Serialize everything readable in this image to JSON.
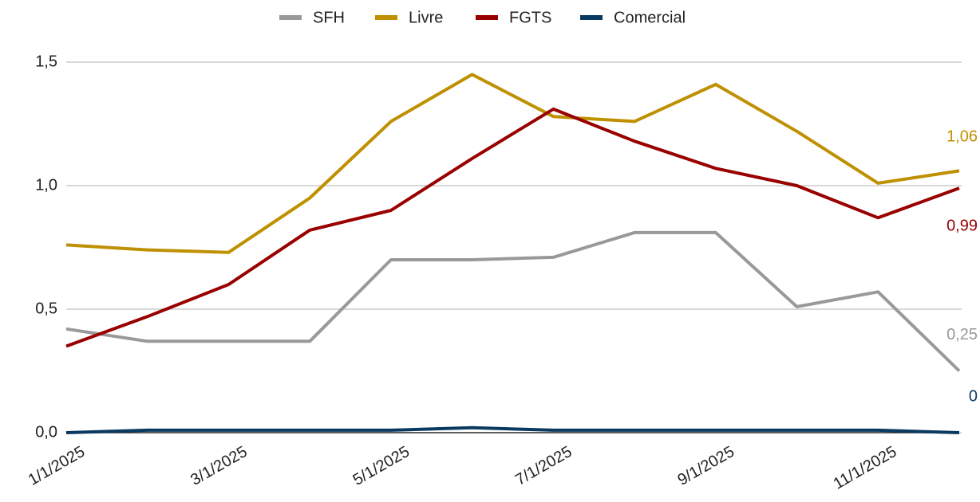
{
  "chart_data": {
    "type": "line",
    "categories": [
      "1/1/2025",
      null,
      "3/1/2025",
      null,
      "5/1/2025",
      null,
      "7/1/2025",
      null,
      "9/1/2025",
      null,
      "11/1/2025",
      null
    ],
    "series": [
      {
        "name": "SFH",
        "color": "#999999",
        "values": [
          0.42,
          0.37,
          0.37,
          0.37,
          0.7,
          0.7,
          0.71,
          0.81,
          0.81,
          0.51,
          0.57,
          0.25
        ],
        "value_labels": [
          null,
          null,
          null,
          null,
          null,
          null,
          null,
          null,
          null,
          null,
          null,
          "0,25"
        ]
      },
      {
        "name": "Livre",
        "color": "#bf9000",
        "values": [
          0.76,
          0.74,
          0.73,
          0.95,
          1.26,
          1.45,
          1.28,
          1.26,
          1.41,
          1.22,
          1.01,
          1.06
        ],
        "value_labels": [
          null,
          null,
          null,
          null,
          null,
          null,
          null,
          null,
          null,
          null,
          null,
          "1,06"
        ]
      },
      {
        "name": "FGTS",
        "color": "#990000",
        "values": [
          0.35,
          0.47,
          0.6,
          0.82,
          0.9,
          1.11,
          1.31,
          1.18,
          1.07,
          1.0,
          0.87,
          0.99
        ],
        "value_labels": [
          null,
          null,
          null,
          null,
          null,
          null,
          null,
          null,
          null,
          null,
          null,
          "0,99"
        ]
      },
      {
        "name": "Comercial",
        "color": "#0b3a60",
        "values": [
          0,
          0.01,
          0.01,
          0.01,
          0.01,
          0.02,
          0.01,
          0.01,
          0.01,
          0.01,
          0.01,
          0
        ],
        "value_labels": [
          null,
          null,
          null,
          null,
          null,
          null,
          null,
          null,
          null,
          null,
          null,
          "0"
        ]
      }
    ],
    "ylim": [
      0,
      1.5
    ],
    "yticks": [
      {
        "value": 0,
        "label": "0,0"
      },
      {
        "value": 0.5,
        "label": "0,5"
      },
      {
        "value": 1.0,
        "label": "1,0"
      },
      {
        "value": 1.5,
        "label": "1,5"
      }
    ],
    "grid": true,
    "legend": "top"
  }
}
